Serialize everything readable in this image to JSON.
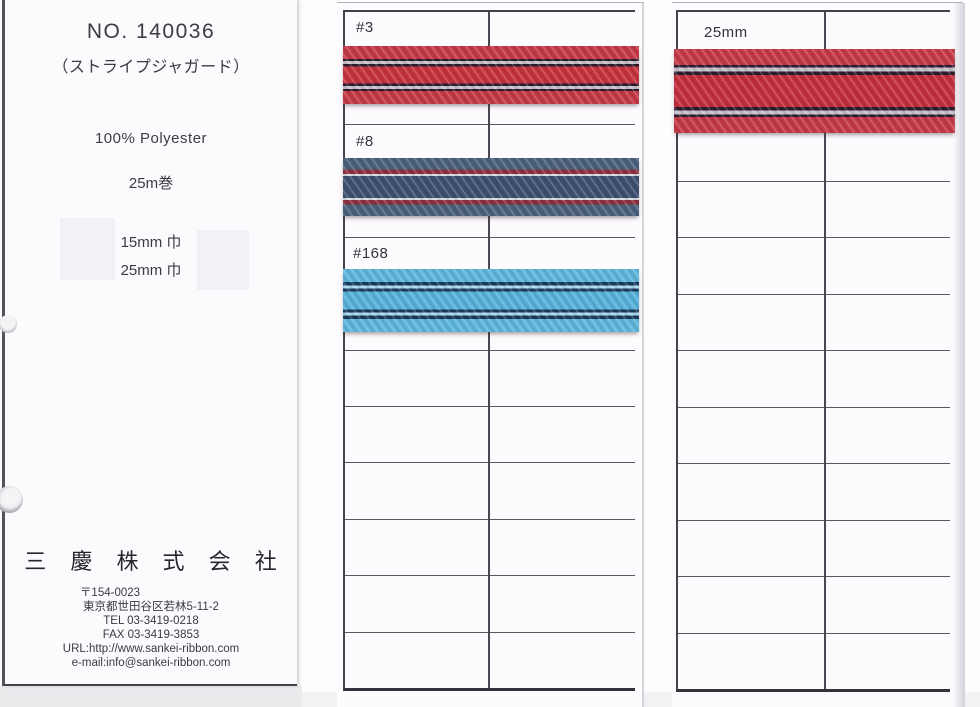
{
  "card": {
    "number": "NO. 140036",
    "subtitle": "（ストライプジャガード）",
    "material": "100% Polyester",
    "length": "25m巻",
    "widths": [
      "15mm 巾",
      "25mm 巾"
    ],
    "company": "三 慶 株 式 会 社",
    "postal": "〒154-0023",
    "address": "東京都世田谷区若林5-11-2",
    "tel": "TEL  03-3419-0218",
    "fax": "FAX  03-3419-3853",
    "url": "URL:http://www.sankei-ribbon.com",
    "email": "e-mail:info@sankei-ribbon.com"
  },
  "ribbons": {
    "r3": {
      "label": "#3",
      "bands": [
        {
          "c": "#c43a47",
          "to": 22
        },
        {
          "c": "#2d1d2e",
          "to": 26
        },
        {
          "c": "#c7bfc8",
          "to": 31
        },
        {
          "c": "#2d1d2e",
          "to": 35
        },
        {
          "c": "#c5333f",
          "to": 65
        },
        {
          "c": "#2d1d2e",
          "to": 69
        },
        {
          "c": "#c7bfc8",
          "to": 74
        },
        {
          "c": "#2d1d2e",
          "to": 78
        },
        {
          "c": "#c43a47",
          "to": 100
        }
      ]
    },
    "r8": {
      "label": "#8",
      "bands": [
        {
          "c": "#4b617d",
          "to": 20
        },
        {
          "c": "#8d3040",
          "to": 28
        },
        {
          "c": "#d8d8e1",
          "to": 31
        },
        {
          "c": "#3e5070",
          "to": 69
        },
        {
          "c": "#d8d8e1",
          "to": 72
        },
        {
          "c": "#8d3040",
          "to": 80
        },
        {
          "c": "#4b617d",
          "to": 100
        }
      ]
    },
    "r168": {
      "label": "#168",
      "bands": [
        {
          "c": "#5eb5da",
          "to": 21
        },
        {
          "c": "#1b3c5d",
          "to": 26
        },
        {
          "c": "#a9d9ec",
          "to": 31
        },
        {
          "c": "#1b3c5d",
          "to": 36
        },
        {
          "c": "#57b1d8",
          "to": 64
        },
        {
          "c": "#1b3c5d",
          "to": 69
        },
        {
          "c": "#a9d9ec",
          "to": 74
        },
        {
          "c": "#1b3c5d",
          "to": 79
        },
        {
          "c": "#5eb5da",
          "to": 100
        }
      ]
    },
    "r25": {
      "label": "25mm",
      "bands": [
        {
          "c": "#c43a47",
          "to": 19
        },
        {
          "c": "#2d1d2e",
          "to": 22
        },
        {
          "c": "#c7bfc8",
          "to": 27
        },
        {
          "c": "#2d1d2e",
          "to": 31
        },
        {
          "c": "#c22f3d",
          "to": 69
        },
        {
          "c": "#2d1d2e",
          "to": 73
        },
        {
          "c": "#c7bfc8",
          "to": 78
        },
        {
          "c": "#2d1d2e",
          "to": 81
        },
        {
          "c": "#c43a47",
          "to": 100
        }
      ]
    }
  },
  "colors": {
    "grid_line": "#5a5662",
    "ribbon_red": "#c5333f",
    "ribbon_navy": "#3e5070",
    "ribbon_sky": "#57b1d8"
  }
}
